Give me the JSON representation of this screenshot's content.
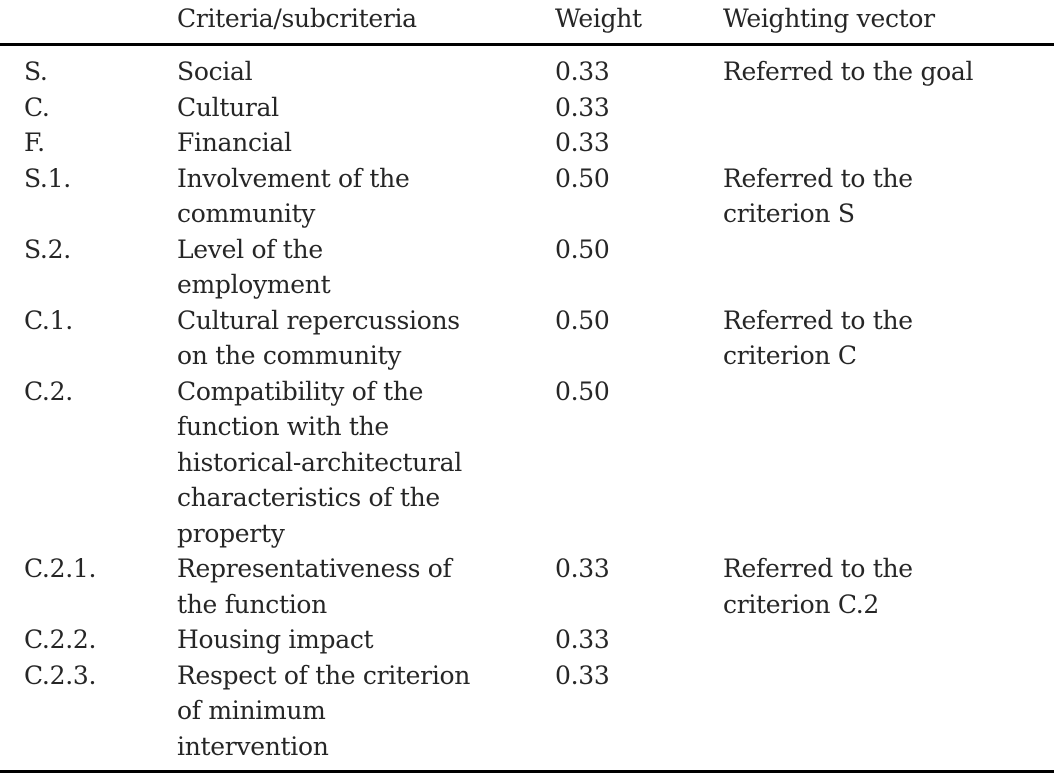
{
  "table": {
    "columns": [
      "",
      "Criteria/subcriteria",
      "Weight",
      "Weighting vector"
    ],
    "rows": [
      {
        "code": "S.",
        "criteria_lines": [
          "Social"
        ],
        "weight": "0.33",
        "vector_lines": [
          "Referred to the goal"
        ]
      },
      {
        "code": "C.",
        "criteria_lines": [
          "Cultural"
        ],
        "weight": "0.33",
        "vector_lines": []
      },
      {
        "code": "F.",
        "criteria_lines": [
          "Financial"
        ],
        "weight": "0.33",
        "vector_lines": []
      },
      {
        "code": "S.1.",
        "criteria_lines": [
          "Involvement of the",
          "community"
        ],
        "weight": "0.50",
        "vector_lines": [
          "Referred to the",
          "criterion S"
        ]
      },
      {
        "code": "S.2.",
        "criteria_lines": [
          "Level of the",
          "employment"
        ],
        "weight": "0.50",
        "vector_lines": []
      },
      {
        "code": "C.1.",
        "criteria_lines": [
          "Cultural repercussions",
          "on the community"
        ],
        "weight": "0.50",
        "vector_lines": [
          "Referred to the",
          "criterion C"
        ]
      },
      {
        "code": "C.2.",
        "criteria_lines": [
          "Compatibility of the",
          "function with the",
          "historical-architectural",
          "characteristics of the",
          "property"
        ],
        "weight": "0.50",
        "vector_lines": []
      },
      {
        "code": "C.2.1.",
        "criteria_lines": [
          "Representativeness of",
          "the function"
        ],
        "weight": "0.33",
        "vector_lines": [
          "Referred to the",
          "criterion C.2"
        ]
      },
      {
        "code": "C.2.2.",
        "criteria_lines": [
          "Housing impact"
        ],
        "weight": "0.33",
        "vector_lines": []
      },
      {
        "code": "C.2.3.",
        "criteria_lines": [
          "Respect of the criterion",
          "of minimum",
          "intervention"
        ],
        "weight": "0.33",
        "vector_lines": []
      }
    ],
    "colors": {
      "text": "#262626",
      "rule": "#000000",
      "background": "#ffffff"
    }
  }
}
